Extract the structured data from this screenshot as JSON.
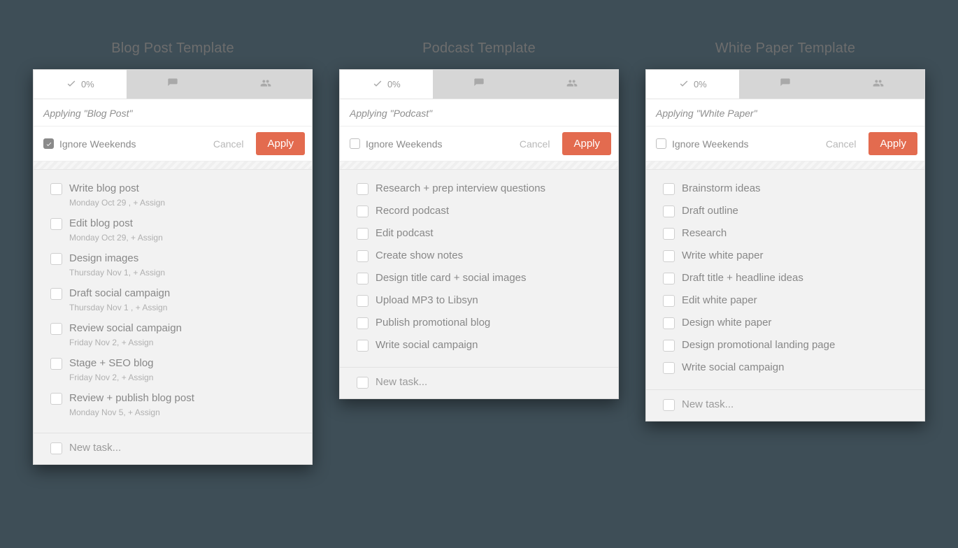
{
  "page": {
    "background_color": "#3e4e57",
    "panel_bg": "#ffffff",
    "tasklist_bg": "#f2f2f2",
    "accent_color": "#e36b4f",
    "shadow": "rgba(0,0,0,0.45)"
  },
  "labels": {
    "cancel": "Cancel",
    "apply": "Apply",
    "ignore_weekends": "Ignore Weekends",
    "new_task": "New task...",
    "percent": "0%"
  },
  "panels": [
    {
      "title": "Blog Post Template",
      "applying": "Applying \"Blog Post\"",
      "ignore_checked": true,
      "tasks": [
        {
          "label": "Write blog post",
          "meta": "Monday Oct 29 ,  + Assign"
        },
        {
          "label": "Edit blog post",
          "meta": "Monday Oct 29,  + Assign"
        },
        {
          "label": "Design images",
          "meta": "Thursday Nov 1,  + Assign"
        },
        {
          "label": "Draft social campaign",
          "meta": "Thursday Nov 1 ,  + Assign"
        },
        {
          "label": "Review social campaign",
          "meta": "Friday Nov 2,  + Assign"
        },
        {
          "label": "Stage + SEO blog",
          "meta": "Friday Nov 2,  + Assign"
        },
        {
          "label": "Review + publish blog post",
          "meta": "Monday Nov 5,  + Assign"
        }
      ]
    },
    {
      "title": "Podcast Template",
      "applying": "Applying \"Podcast\"",
      "ignore_checked": false,
      "tasks": [
        {
          "label": "Research + prep interview questions"
        },
        {
          "label": "Record podcast"
        },
        {
          "label": "Edit podcast"
        },
        {
          "label": "Create show notes"
        },
        {
          "label": "Design title card + social images"
        },
        {
          "label": "Upload MP3 to Libsyn"
        },
        {
          "label": "Publish promotional blog"
        },
        {
          "label": "Write social campaign"
        }
      ]
    },
    {
      "title": "White Paper Template",
      "applying": "Applying \"White Paper\"",
      "ignore_checked": false,
      "tasks": [
        {
          "label": "Brainstorm ideas"
        },
        {
          "label": "Draft outline"
        },
        {
          "label": "Research"
        },
        {
          "label": "Write white paper"
        },
        {
          "label": "Draft title + headline ideas"
        },
        {
          "label": "Edit white paper"
        },
        {
          "label": "Design white paper"
        },
        {
          "label": "Design promotional landing page"
        },
        {
          "label": "Write social campaign"
        }
      ]
    }
  ]
}
